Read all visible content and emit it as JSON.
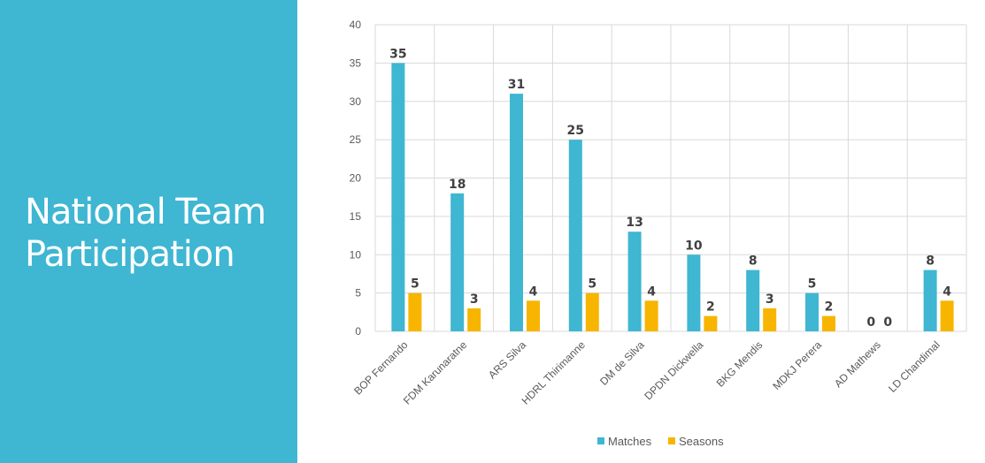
{
  "slide": {
    "title_line1": "National Team",
    "title_line2": "Participation",
    "panel_color": "#3fb6d2"
  },
  "chart_data": {
    "type": "bar",
    "title": "",
    "xlabel": "",
    "ylabel": "",
    "ylim": [
      0,
      40
    ],
    "yticks": [
      0,
      5,
      10,
      15,
      20,
      25,
      30,
      35,
      40
    ],
    "grid": true,
    "legend_position": "bottom",
    "categories": [
      "BOP Fernando",
      "FDM Karunaratne",
      "ARS Silva",
      "HDRL Thirimanne",
      "DM de Silva",
      "DPDN Dickwella",
      "BKG Mendis",
      "MDKJ Perera",
      "AD Mathews",
      "LD Chandimal"
    ],
    "series": [
      {
        "name": "Matches",
        "color": "#3fb6d2",
        "values": [
          35,
          18,
          31,
          25,
          13,
          10,
          8,
          5,
          0,
          8
        ]
      },
      {
        "name": "Seasons",
        "color": "#f7b500",
        "values": [
          5,
          3,
          4,
          5,
          4,
          2,
          3,
          2,
          0,
          4
        ]
      }
    ]
  }
}
